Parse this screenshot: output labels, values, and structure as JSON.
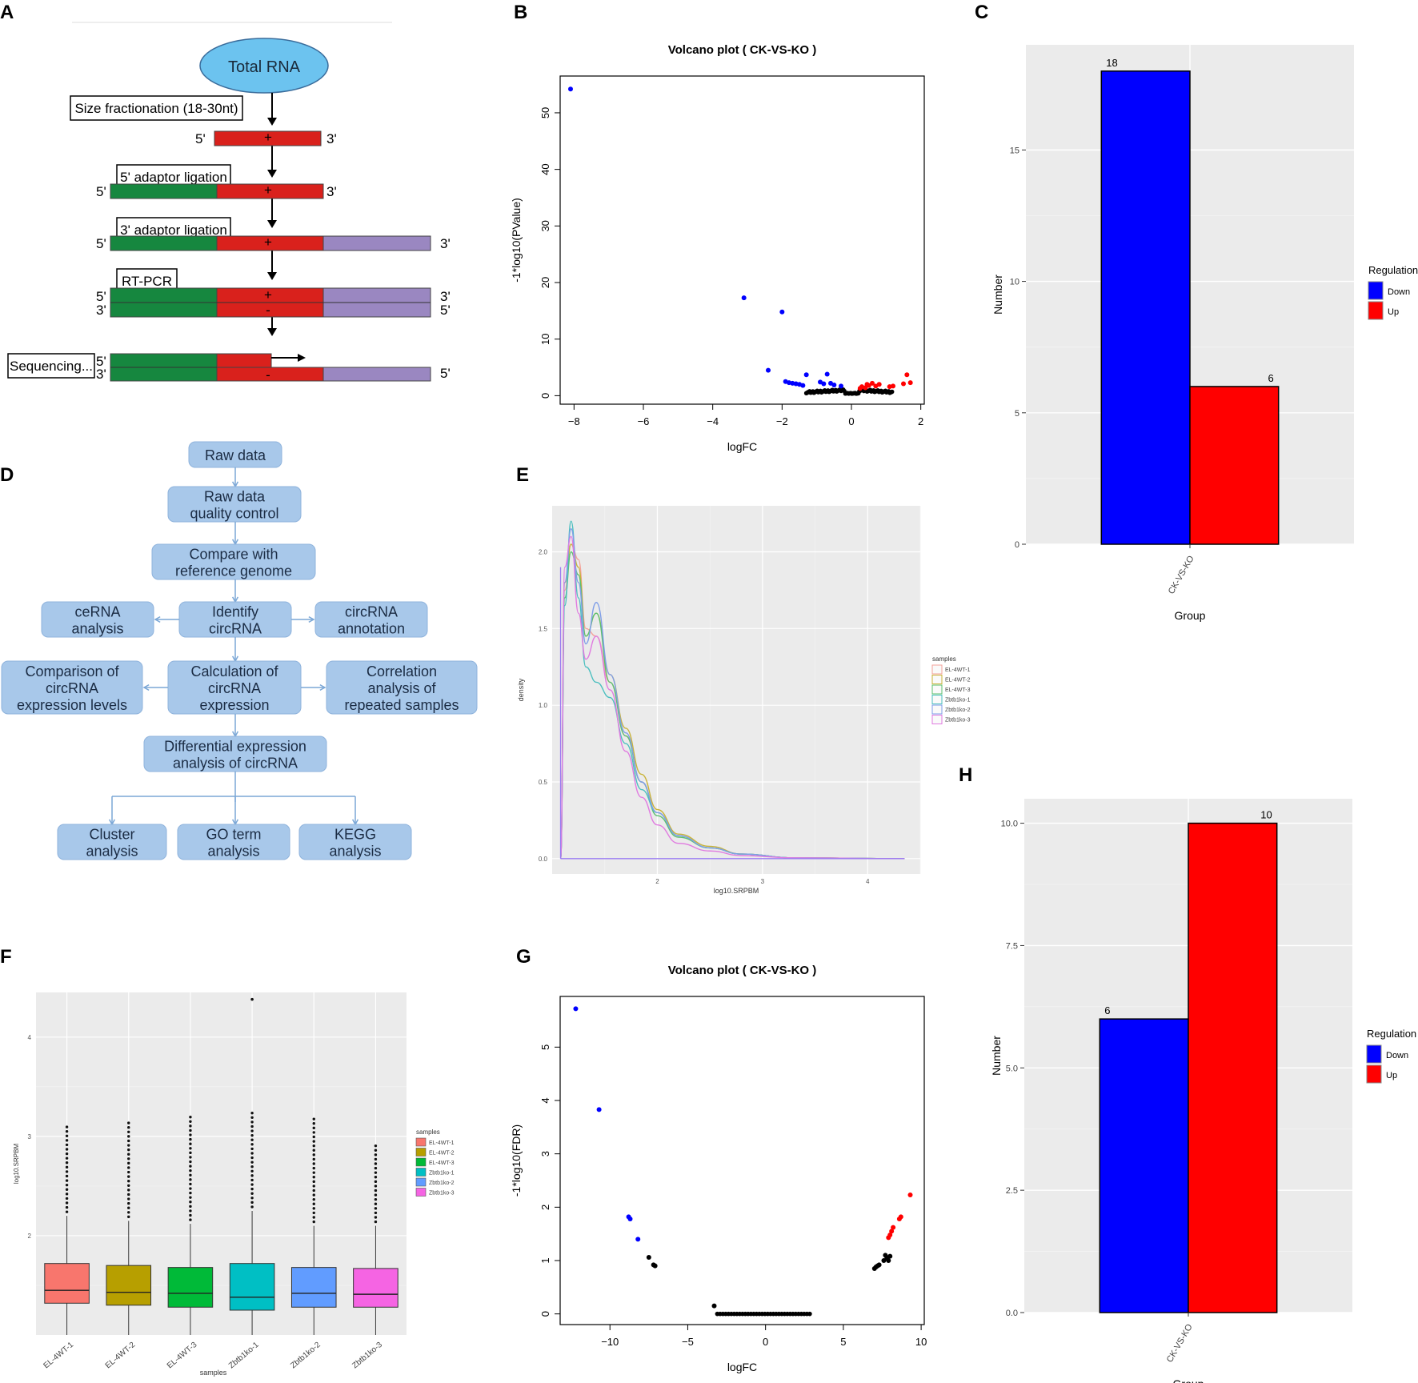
{
  "colors": {
    "down": "#0000ff",
    "up": "#ff0000",
    "neutral": "#000000",
    "ggbg": "#ebebeb",
    "grid": "#ffffff",
    "flowBox": "#a8c8ea",
    "flowText": "#1b2c44",
    "flowArrow": "#7ba7d6",
    "green": "#16873f",
    "red": "#d9211c",
    "purple": "#9a87c1",
    "ellipse": "#6cc3ef"
  },
  "panel_labels": {
    "A": "A",
    "B": "B",
    "C": "C",
    "D": "D",
    "E": "E",
    "F": "F",
    "G": "G",
    "H": "H"
  },
  "panelA": {
    "total_rna": "Total RNA",
    "steps": [
      "Size fractionation (18-30nt)",
      "5' adaptor ligation",
      "3' adaptor ligation",
      "RT-PCR",
      "Sequencing..."
    ],
    "end5": "5'",
    "end3": "3'",
    "plus": "+",
    "minus": "-"
  },
  "panelD": {
    "raw_data": "Raw data",
    "qc": [
      "Raw data",
      "quality control"
    ],
    "compare": [
      "Compare with",
      "reference genome"
    ],
    "identify": [
      "Identify",
      "circRNA"
    ],
    "cerna": [
      "ceRNA",
      "analysis"
    ],
    "annotation": [
      "circRNA",
      "annotation"
    ],
    "calc": [
      "Calculation of",
      "circRNA",
      "expression"
    ],
    "comparison": [
      "Comparison of",
      "circRNA",
      "expression levels"
    ],
    "correlation": [
      "Correlation",
      "analysis of",
      "repeated samples"
    ],
    "diff": [
      "Differential expression",
      "analysis of circRNA"
    ],
    "cluster": [
      "Cluster",
      "analysis"
    ],
    "go": [
      "GO term",
      "analysis"
    ],
    "kegg": [
      "KEGG",
      "analysis"
    ]
  },
  "chart_data": [
    {
      "id": "B",
      "type": "scatter",
      "title": "Volcano plot ( CK-VS-KO )",
      "xlabel": "logFC",
      "ylabel": "-1*log10(PValue)",
      "xlim": [
        -8.4,
        2.1
      ],
      "ylim": [
        -1.5,
        56.5
      ],
      "xticks": [
        -8,
        -6,
        -4,
        -2,
        0,
        2
      ],
      "yticks": [
        0,
        10,
        20,
        30,
        40,
        50
      ],
      "points_down": [
        [
          -8.1,
          54.2
        ],
        [
          -3.1,
          17.3
        ],
        [
          -2.0,
          14.8
        ],
        [
          -2.4,
          4.5
        ],
        [
          -1.3,
          3.7
        ],
        [
          -0.7,
          3.8
        ],
        [
          -1.9,
          2.5
        ],
        [
          -1.8,
          2.3
        ],
        [
          -1.7,
          2.2
        ],
        [
          -1.6,
          2.1
        ],
        [
          -1.5,
          2.0
        ],
        [
          -1.4,
          1.8
        ],
        [
          -0.9,
          2.4
        ],
        [
          -0.8,
          2.1
        ],
        [
          -0.6,
          2.2
        ],
        [
          -0.5,
          1.9
        ],
        [
          -0.3,
          1.7
        ]
      ],
      "points_up": [
        [
          1.6,
          3.7
        ],
        [
          1.7,
          2.3
        ],
        [
          1.5,
          2.1
        ],
        [
          1.2,
          1.7
        ],
        [
          1.1,
          1.6
        ],
        [
          0.8,
          2.0
        ],
        [
          0.7,
          1.7
        ],
        [
          0.6,
          2.2
        ],
        [
          0.5,
          1.8
        ],
        [
          0.45,
          2.0
        ],
        [
          0.4,
          1.4
        ],
        [
          0.3,
          1.6
        ],
        [
          0.25,
          1.3
        ]
      ],
      "neutral_note": "dense cluster of black non-significant points near logFC 0"
    },
    {
      "id": "C",
      "type": "bar",
      "xlabel": "Group",
      "ylabel": "Number",
      "categories": [
        "CK-VS-KO"
      ],
      "series": [
        {
          "name": "Down",
          "values": [
            18
          ]
        },
        {
          "name": "Up",
          "values": [
            6
          ]
        }
      ],
      "ylim": [
        0,
        19.0
      ],
      "yticks": [
        0,
        5,
        10,
        15
      ],
      "data_labels": [
        "18",
        "6"
      ],
      "legend": {
        "title": "Regulation",
        "entries": [
          "Down",
          "Up"
        ],
        "position": "right"
      }
    },
    {
      "id": "E",
      "type": "line",
      "xlabel": "log10.SRPBM",
      "ylabel": "density",
      "xlim": [
        1.0,
        4.5
      ],
      "ylim": [
        -0.1,
        2.3
      ],
      "xticks": [
        2,
        3,
        4
      ],
      "yticks": [
        0.0,
        0.5,
        1.0,
        1.5,
        2.0
      ],
      "xtick_labels": [
        "2",
        "3",
        "4"
      ],
      "ytick_labels": [
        "0.0",
        "0.5",
        "1.0",
        "1.5",
        "2.0"
      ],
      "legend": {
        "title": "samples",
        "entries": [
          "EL-4WT-1",
          "EL-4WT-2",
          "EL-4WT-3",
          "Zbtb1ko-1",
          "Zbtb1ko-2",
          "Zbtb1ko-3"
        ],
        "position": "right"
      },
      "series": [
        {
          "name": "EL-4WT-1",
          "color": "#f4a29a",
          "x": [
            1.08,
            1.12,
            1.18,
            1.25,
            1.32,
            1.42,
            1.55,
            1.7,
            1.85,
            2.0,
            2.2,
            2.5,
            2.8,
            3.3,
            4.35
          ],
          "y": [
            0.0,
            1.75,
            2.05,
            1.95,
            1.5,
            1.45,
            1.15,
            0.8,
            0.5,
            0.3,
            0.15,
            0.07,
            0.03,
            0.005,
            0.0
          ]
        },
        {
          "name": "EL-4WT-2",
          "color": "#c9b33a",
          "x": [
            1.08,
            1.12,
            1.18,
            1.25,
            1.32,
            1.42,
            1.55,
            1.7,
            1.85,
            2.0,
            2.2,
            2.5,
            2.8,
            3.3,
            4.35
          ],
          "y": [
            0.0,
            1.8,
            2.05,
            1.9,
            1.45,
            1.6,
            1.2,
            0.85,
            0.55,
            0.32,
            0.16,
            0.08,
            0.03,
            0.005,
            0.0
          ]
        },
        {
          "name": "EL-4WT-3",
          "color": "#5cc06f",
          "x": [
            1.08,
            1.12,
            1.18,
            1.25,
            1.32,
            1.42,
            1.55,
            1.7,
            1.85,
            2.0,
            2.2,
            2.5,
            2.8,
            3.3,
            4.35
          ],
          "y": [
            0.0,
            1.7,
            2.0,
            1.85,
            1.45,
            1.6,
            1.15,
            0.8,
            0.5,
            0.28,
            0.14,
            0.07,
            0.03,
            0.005,
            0.0
          ]
        },
        {
          "name": "Zbtb1ko-1",
          "color": "#4bbfbf",
          "x": [
            1.08,
            1.12,
            1.18,
            1.25,
            1.32,
            1.42,
            1.55,
            1.7,
            1.85,
            2.0,
            2.2,
            2.5,
            2.8,
            3.3,
            4.35
          ],
          "y": [
            0.0,
            1.65,
            2.2,
            1.7,
            1.25,
            1.15,
            1.05,
            0.75,
            0.45,
            0.3,
            0.15,
            0.07,
            0.03,
            0.005,
            0.0
          ]
        },
        {
          "name": "Zbtb1ko-2",
          "color": "#7f9ee8",
          "x": [
            1.08,
            1.12,
            1.18,
            1.25,
            1.32,
            1.42,
            1.55,
            1.7,
            1.85,
            2.0,
            2.2,
            2.5,
            2.8,
            3.3,
            4.35
          ],
          "y": [
            0.0,
            1.8,
            2.15,
            1.8,
            1.4,
            1.67,
            1.2,
            0.82,
            0.5,
            0.3,
            0.15,
            0.07,
            0.03,
            0.005,
            0.0
          ]
        },
        {
          "name": "Zbtb1ko-3",
          "color": "#e07be0",
          "x": [
            1.08,
            1.12,
            1.18,
            1.25,
            1.32,
            1.42,
            1.55,
            1.7,
            1.85,
            2.0,
            2.2,
            2.5,
            2.8,
            3.3,
            4.35
          ],
          "y": [
            0.0,
            1.9,
            2.1,
            1.6,
            1.3,
            1.45,
            1.1,
            0.7,
            0.4,
            0.22,
            0.1,
            0.05,
            0.02,
            0.005,
            0.0
          ]
        }
      ]
    },
    {
      "id": "F",
      "type": "box",
      "xlabel": "samples",
      "ylabel": "log10.SRPBM",
      "categories": [
        "EL-4WT-1",
        "EL-4WT-2",
        "EL-4WT-3",
        "Zbtb1ko-1",
        "Zbtb1ko-2",
        "Zbtb1ko-3"
      ],
      "colors": [
        "#f8766d",
        "#b79f00",
        "#00ba38",
        "#00bfc4",
        "#619cff",
        "#f564e3"
      ],
      "ylim": [
        1.0,
        4.45
      ],
      "yticks": [
        2,
        3,
        4
      ],
      "boxes": [
        {
          "q1": 1.32,
          "median": 1.45,
          "q3": 1.72,
          "whisker_low": 1.0,
          "whisker_high": 2.2,
          "outlier_max": 3.1
        },
        {
          "q1": 1.3,
          "median": 1.43,
          "q3": 1.7,
          "whisker_low": 1.0,
          "whisker_high": 2.15,
          "outlier_max": 3.15
        },
        {
          "q1": 1.28,
          "median": 1.42,
          "q3": 1.68,
          "whisker_low": 1.0,
          "whisker_high": 2.12,
          "outlier_max": 3.2
        },
        {
          "q1": 1.25,
          "median": 1.38,
          "q3": 1.72,
          "whisker_low": 1.0,
          "whisker_high": 2.25,
          "outlier_max": 4.38
        },
        {
          "q1": 1.28,
          "median": 1.42,
          "q3": 1.68,
          "whisker_low": 1.0,
          "whisker_high": 2.1,
          "outlier_max": 3.18
        },
        {
          "q1": 1.28,
          "median": 1.41,
          "q3": 1.67,
          "whisker_low": 1.0,
          "whisker_high": 2.1,
          "outlier_max": 2.93
        }
      ],
      "legend": {
        "title": "samples",
        "entries": [
          "EL-4WT-1",
          "EL-4WT-2",
          "EL-4WT-3",
          "Zbtb1ko-1",
          "Zbtb1ko-2",
          "Zbtb1ko-3"
        ],
        "position": "right"
      }
    },
    {
      "id": "G",
      "type": "scatter",
      "title": "Volcano plot ( CK-VS-KO )",
      "xlabel": "logFC",
      "ylabel": "-1*log10(FDR)",
      "xlim": [
        -13.2,
        10.2
      ],
      "ylim": [
        -0.2,
        5.95
      ],
      "xticks": [
        -10,
        -5,
        0,
        5,
        10
      ],
      "yticks": [
        0,
        1,
        2,
        3,
        4,
        5
      ],
      "points_down": [
        [
          -12.2,
          5.72
        ],
        [
          -10.7,
          3.83
        ],
        [
          -8.8,
          1.82
        ],
        [
          -8.7,
          1.78
        ],
        [
          -8.2,
          1.4
        ]
      ],
      "points_up": [
        [
          9.3,
          2.23
        ],
        [
          8.7,
          1.82
        ],
        [
          8.6,
          1.78
        ],
        [
          8.2,
          1.62
        ],
        [
          8.1,
          1.55
        ],
        [
          8.0,
          1.48
        ],
        [
          7.9,
          1.43
        ]
      ],
      "points_neutral": [
        [
          -7.5,
          1.06
        ],
        [
          -7.2,
          0.92
        ],
        [
          -7.1,
          0.9
        ],
        [
          -3.3,
          0.15
        ],
        [
          7.0,
          0.85
        ],
        [
          7.1,
          0.88
        ],
        [
          7.2,
          0.9
        ],
        [
          7.3,
          0.92
        ],
        [
          7.6,
          1.0
        ],
        [
          7.7,
          1.1
        ],
        [
          7.8,
          1.05
        ],
        [
          7.9,
          1.0
        ],
        [
          8.0,
          1.08
        ]
      ],
      "neutral_line_range": [
        -3.1,
        2.9
      ]
    },
    {
      "id": "H",
      "type": "bar",
      "xlabel": "Group",
      "ylabel": "Number",
      "categories": [
        "CK-VS-KO"
      ],
      "series": [
        {
          "name": "Down",
          "values": [
            6
          ]
        },
        {
          "name": "Up",
          "values": [
            10
          ]
        }
      ],
      "ylim": [
        0,
        10.5
      ],
      "yticks": [
        0.0,
        2.5,
        5.0,
        7.5,
        10.0
      ],
      "ytick_labels": [
        "0.0",
        "2.5",
        "5.0",
        "7.5",
        "10.0"
      ],
      "data_labels": [
        "6",
        "10"
      ],
      "legend": {
        "title": "Regulation",
        "entries": [
          "Down",
          "Up"
        ],
        "position": "right"
      }
    }
  ]
}
